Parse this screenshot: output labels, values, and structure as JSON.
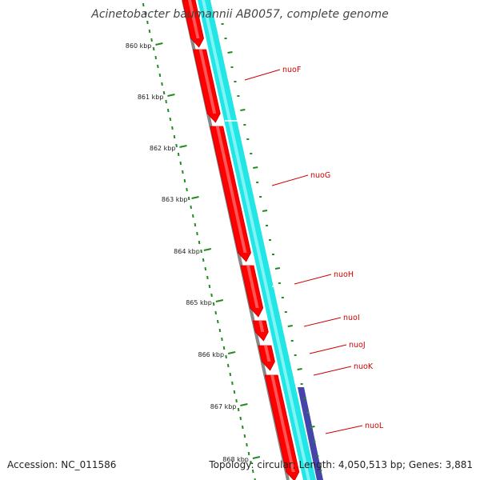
{
  "title": "Acinetobacter baumannii AB0057, complete genome",
  "footer": {
    "accession": "Accession: NC_011586",
    "summary": "Topology: circular; Length: 4,050,513 bp; Genes: 3,881"
  },
  "colors": {
    "gene": "#ff0000",
    "gene_edge": "#cc0000",
    "cds": "#22e6e6",
    "backbone": "#888888",
    "ticks": "#228b22",
    "other_feature": "#4444aa",
    "label": "#cc0000"
  },
  "scale_labels": [
    "860 kbp",
    "861 kbp",
    "862 kbp",
    "863 kbp",
    "864 kbp",
    "865 kbp",
    "866 kbp",
    "867 kbp",
    "868 kbp"
  ],
  "genes": [
    {
      "name": "nuoF"
    },
    {
      "name": "nuoG"
    },
    {
      "name": "nuoH"
    },
    {
      "name": "nuoI"
    },
    {
      "name": "nuoJ"
    },
    {
      "name": "nuoK"
    },
    {
      "name": "nuoL"
    }
  ]
}
